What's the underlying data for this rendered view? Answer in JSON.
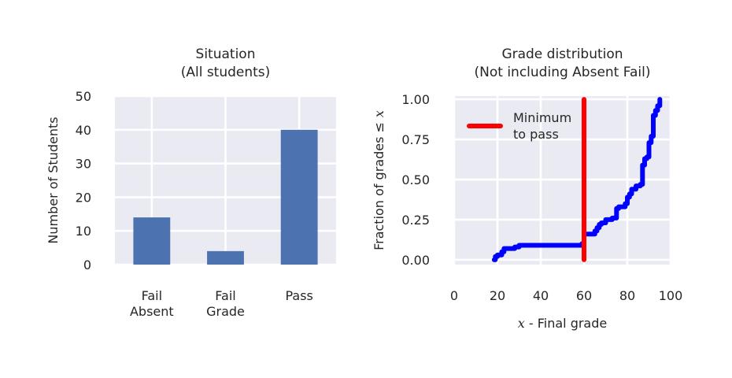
{
  "chart_data": [
    {
      "type": "bar",
      "title_lines": [
        "Situation",
        "(All students)"
      ],
      "ylabel": "Number of Students",
      "categories": [
        [
          "Fail",
          "Absent"
        ],
        [
          "Fail",
          "Grade"
        ],
        [
          "Pass"
        ]
      ],
      "values": [
        14,
        4,
        40
      ],
      "ylim": [
        0,
        50
      ],
      "yticks": [
        "0",
        "10",
        "20",
        "30",
        "40",
        "50"
      ],
      "bar_color": "#4c72b0",
      "grid": true
    },
    {
      "type": "line",
      "title_lines": [
        "Grade distribution",
        "(Not including Absent Fail)"
      ],
      "ylabel_text": "Fraction of grades ",
      "ylabel_sym": "≤",
      "ylabel_var": "x",
      "xlabel_var": "x",
      "xlabel_text": " - Final grade",
      "xlim": [
        0,
        100
      ],
      "ylim": [
        -0.03,
        1.02
      ],
      "xticks": [
        "0",
        "20",
        "40",
        "60",
        "80",
        "100"
      ],
      "yticks": [
        "0.00",
        "0.25",
        "0.50",
        "0.75",
        "1.00"
      ],
      "grid": true,
      "series": [
        {
          "name": "",
          "color": "#0000ff",
          "step": true,
          "x": [
            18.5,
            19,
            20,
            22,
            23,
            28,
            30,
            59,
            60,
            65,
            66,
            67,
            68,
            70,
            73,
            75,
            76,
            79,
            80,
            81,
            82,
            84,
            86,
            87,
            88,
            89,
            90,
            91,
            92,
            93,
            94,
            95
          ],
          "y": [
            0.0,
            0.02,
            0.03,
            0.05,
            0.07,
            0.08,
            0.09,
            0.1,
            0.16,
            0.18,
            0.2,
            0.22,
            0.23,
            0.25,
            0.26,
            0.32,
            0.33,
            0.35,
            0.39,
            0.41,
            0.44,
            0.46,
            0.47,
            0.59,
            0.63,
            0.64,
            0.73,
            0.77,
            0.9,
            0.93,
            0.96,
            1.0
          ]
        },
        {
          "name": "Minimum to pass",
          "legend_lines": [
            "Minimum",
            "to pass"
          ],
          "color": "#ff0000",
          "x": [
            60,
            60
          ],
          "y": [
            0,
            1
          ]
        }
      ]
    }
  ]
}
